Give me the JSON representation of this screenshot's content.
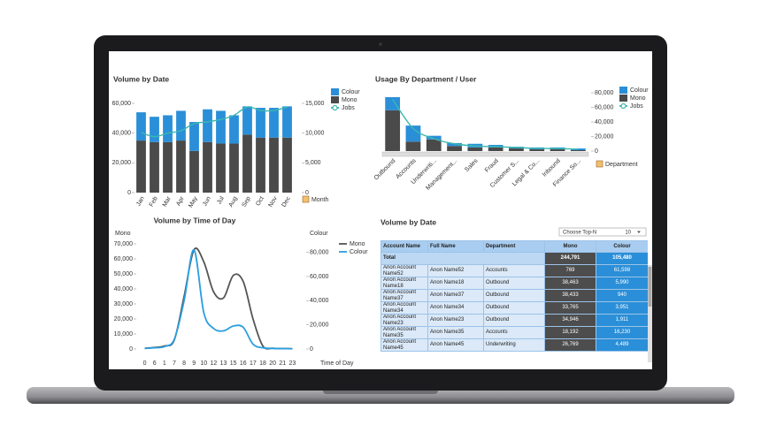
{
  "chart_data": [
    {
      "type": "bar",
      "title": "Volume by Date",
      "x_label": "Month",
      "categories": [
        "Jan",
        "Feb",
        "Mar",
        "Apr",
        "May",
        "Jun",
        "Jul",
        "Aug",
        "Sep",
        "Oct",
        "Nov",
        "Dec"
      ],
      "series": [
        {
          "name": "Colour",
          "color": "#2a8fd8",
          "values": [
            19000,
            17000,
            18000,
            20000,
            19500,
            22000,
            22000,
            19000,
            19000,
            20000,
            20000,
            21000
          ]
        },
        {
          "name": "Mono",
          "color": "#4a4a4a",
          "values": [
            35000,
            34000,
            34000,
            35000,
            28000,
            34000,
            33000,
            33000,
            39000,
            37000,
            37000,
            37000
          ]
        },
        {
          "name": "Jobs",
          "type": "line",
          "axis": "y2",
          "color": "#3bb8b0",
          "values": [
            10100,
            9400,
            10000,
            10400,
            11600,
            11900,
            12300,
            13000,
            14400,
            13800,
            13800,
            14400
          ]
        }
      ],
      "ylim": [
        0,
        60000
      ],
      "yticks": [
        0,
        {
          "value": 20000,
          "label": "20,000"
        },
        {
          "value": 40000,
          "label": "40,000"
        },
        {
          "value": 60000,
          "label": "60,000"
        }
      ],
      "y2lim": [
        0,
        15000
      ],
      "y2ticks": [
        0,
        {
          "value": 5000,
          "label": "5,000"
        },
        {
          "value": 10000,
          "label": "10,000"
        },
        {
          "value": 15000,
          "label": "15,000"
        }
      ]
    },
    {
      "type": "bar",
      "title": "Usage By Department / User",
      "x_label": "Department",
      "categories": [
        "Outbound",
        "Accounts",
        "Underwriti...",
        "Management...",
        "Sales",
        "Fraud",
        "Customer S...",
        "Legal & Co...",
        "Inbound",
        "Finance So..."
      ],
      "series": [
        {
          "name": "Colour",
          "color": "#2a8fd8",
          "values": [
            18000,
            22000,
            5000,
            4000,
            5000,
            3500,
            2400,
            2600,
            2600,
            2400
          ]
        },
        {
          "name": "Mono",
          "color": "#4a4a4a",
          "values": [
            56000,
            13000,
            16000,
            7000,
            5000,
            5000,
            3600,
            2400,
            2400,
            1200
          ]
        },
        {
          "name": "Jobs",
          "type": "line",
          "color": "#3bb8b0",
          "values": [
            71000,
            31000,
            17000,
            10000,
            7000,
            6000,
            5000,
            3600,
            3600,
            2400
          ]
        }
      ],
      "ylim": [
        0,
        80000
      ],
      "yticks": [
        0,
        {
          "value": 20000,
          "label": "20,000"
        },
        {
          "value": 40000,
          "label": "40,000"
        },
        {
          "value": 60000,
          "label": "60,000"
        },
        {
          "value": 80000,
          "label": "80,000"
        }
      ]
    },
    {
      "type": "line",
      "title": "Volume by Time of Day",
      "x_label": "Time of Day",
      "y_label": "Mono",
      "y2_label": "Colour",
      "categories": [
        "0",
        "6",
        "1",
        "7",
        "8",
        "9",
        "10",
        "12",
        "13",
        "15",
        "16",
        "17",
        "18",
        "20",
        "21",
        "23"
      ],
      "series": [
        {
          "name": "Mono",
          "color": "#555555",
          "values": [
            500,
            1000,
            2000,
            6000,
            35000,
            66000,
            58000,
            38000,
            34000,
            49000,
            45000,
            20000,
            2000,
            500,
            300,
            200
          ]
        },
        {
          "name": "Colour",
          "color": "#2a9ee0",
          "axis": "y2",
          "values": [
            500,
            1000,
            2000,
            8000,
            40000,
            82000,
            30000,
            17000,
            15000,
            19000,
            18000,
            4000,
            1000,
            500,
            300,
            200
          ]
        }
      ],
      "ylim": [
        0,
        70000
      ],
      "yticks": [
        0,
        {
          "value": 10000,
          "label": "10,000"
        },
        {
          "value": 20000,
          "label": "20,000"
        },
        {
          "value": 30000,
          "label": "30,000"
        },
        {
          "value": 40000,
          "label": "40,000"
        },
        {
          "value": 50000,
          "label": "50,000"
        },
        {
          "value": 60000,
          "label": "60,000"
        },
        {
          "value": 70000,
          "label": "70,000"
        }
      ],
      "y2lim": [
        0,
        87000
      ],
      "y2ticks": [
        0,
        {
          "value": 20000,
          "label": "20,000"
        },
        {
          "value": 40000,
          "label": "40,000"
        },
        {
          "value": 60000,
          "label": "60,000"
        },
        {
          "value": 80000,
          "label": "80,000"
        }
      ]
    }
  ],
  "table": {
    "title": "Volume by Date",
    "control": {
      "label": "Choose Top-N",
      "value": "10"
    },
    "columns": [
      "Account Name",
      "Full Name",
      "Department",
      "Mono",
      "Colour"
    ],
    "total": {
      "label": "Total",
      "mono": "244,791",
      "colour": "105,480"
    },
    "rows": [
      [
        "Anon Account Name52",
        "Anon Name52",
        "Accounts",
        "769",
        "61,598"
      ],
      [
        "Anon Account Name18",
        "Anon Name18",
        "Outbound",
        "38,463",
        "5,990"
      ],
      [
        "Anon Account Name37",
        "Anon Name37",
        "Outbound",
        "38,433",
        "940"
      ],
      [
        "Anon Account Name34",
        "Anon Name34",
        "Outbound",
        "33,765",
        "3,951"
      ],
      [
        "Anon Account Name23",
        "Anon Name23",
        "Outbound",
        "34,946",
        "1,911"
      ],
      [
        "Anon Account Name35",
        "Anon Name35",
        "Accounts",
        "18,192",
        "16,230"
      ],
      [
        "Anon Account Name45",
        "Anon Name45",
        "Underwriting",
        "26,769",
        "4,489"
      ]
    ]
  }
}
